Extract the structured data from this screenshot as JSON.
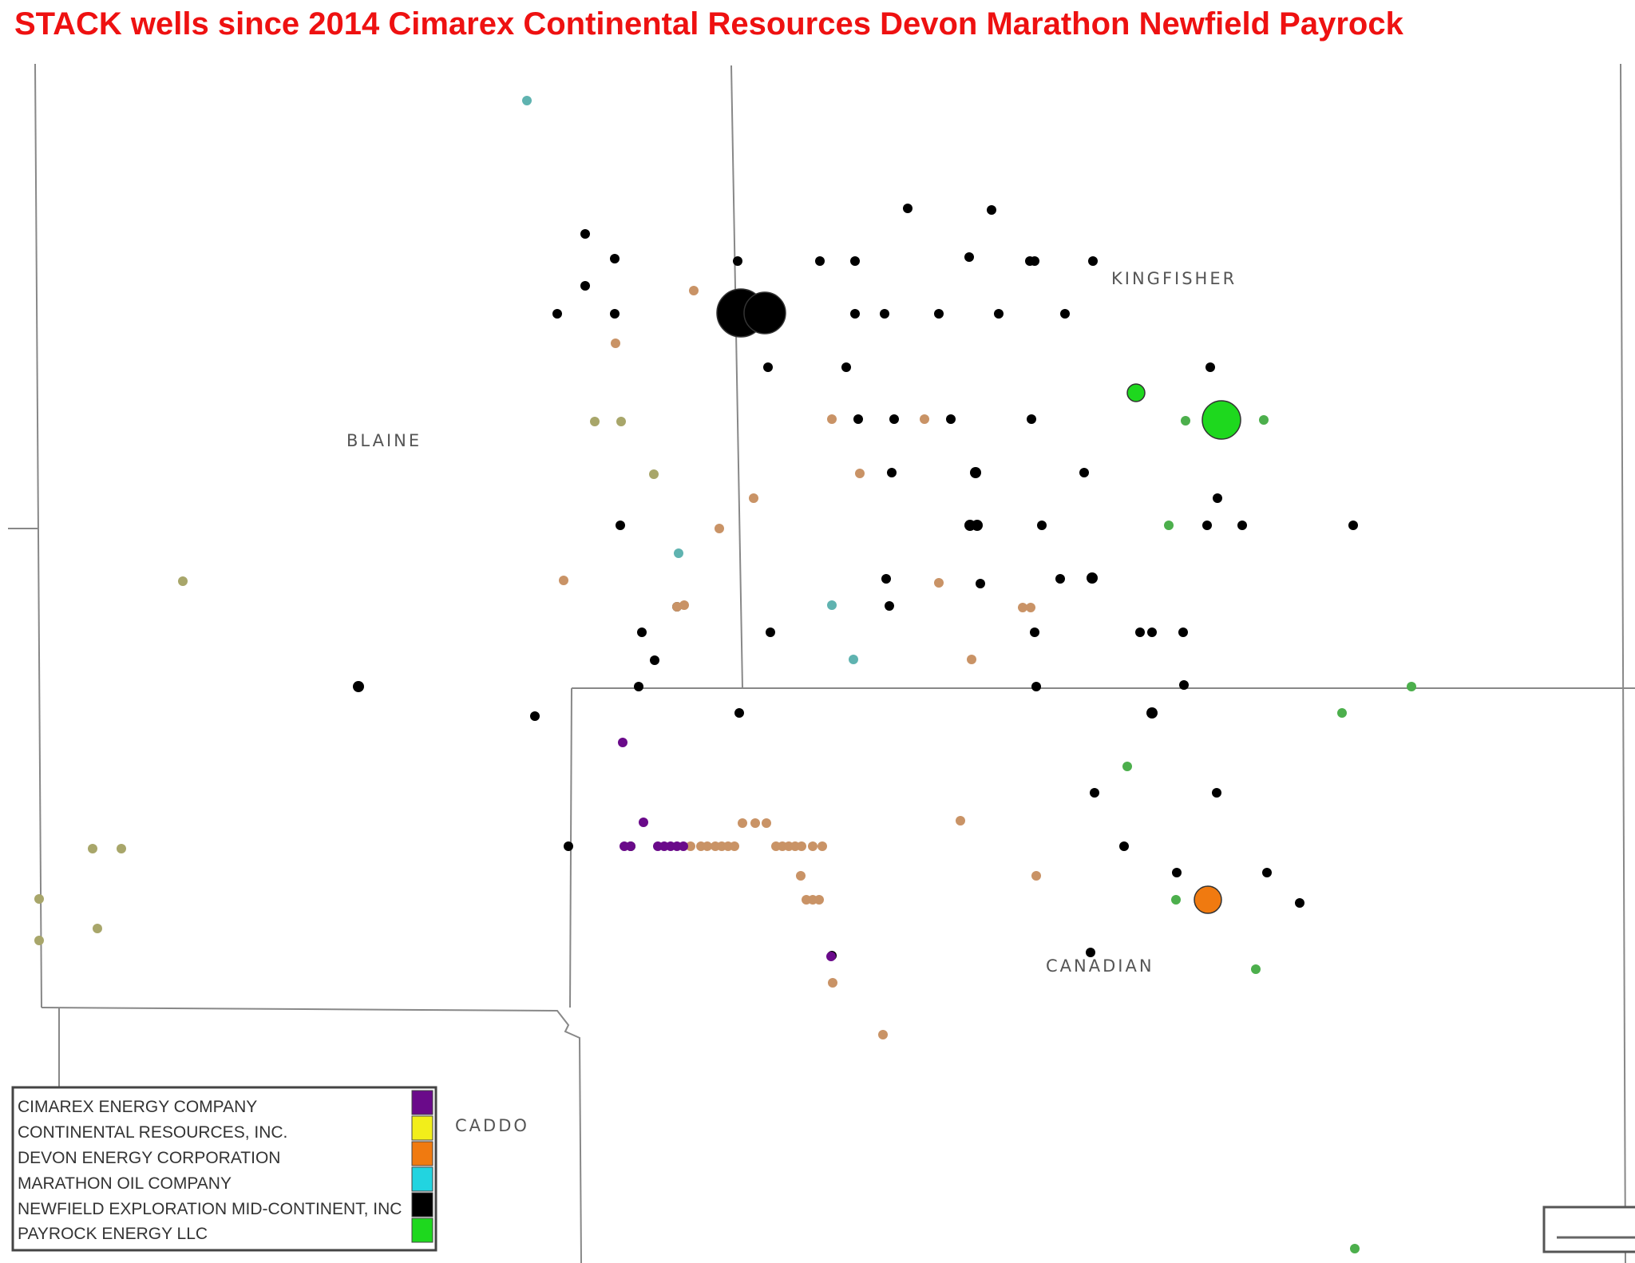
{
  "title": "STACK wells since 2014 Cimarex Continental Resources Devon Marathon Newfield Payrock",
  "counties": [
    {
      "name": "BLAINE"
    },
    {
      "name": "KINGFISHER"
    },
    {
      "name": "CANADIAN"
    },
    {
      "name": "CADDO"
    }
  ],
  "legend": [
    {
      "label": "CIMAREX ENERGY COMPANY",
      "color": "#6a0a8a"
    },
    {
      "label": "CONTINENTAL RESOURCES, INC.",
      "color": "#f2ee1a"
    },
    {
      "label": "DEVON ENERGY CORPORATION",
      "color": "#f07a10"
    },
    {
      "label": "MARATHON OIL COMPANY",
      "color": "#22d4e0"
    },
    {
      "label": "NEWFIELD EXPLORATION MID-CONTINENT, INC",
      "color": "#000000"
    },
    {
      "label": "PAYROCK ENERGY LLC",
      "color": "#1ed81e"
    }
  ]
}
